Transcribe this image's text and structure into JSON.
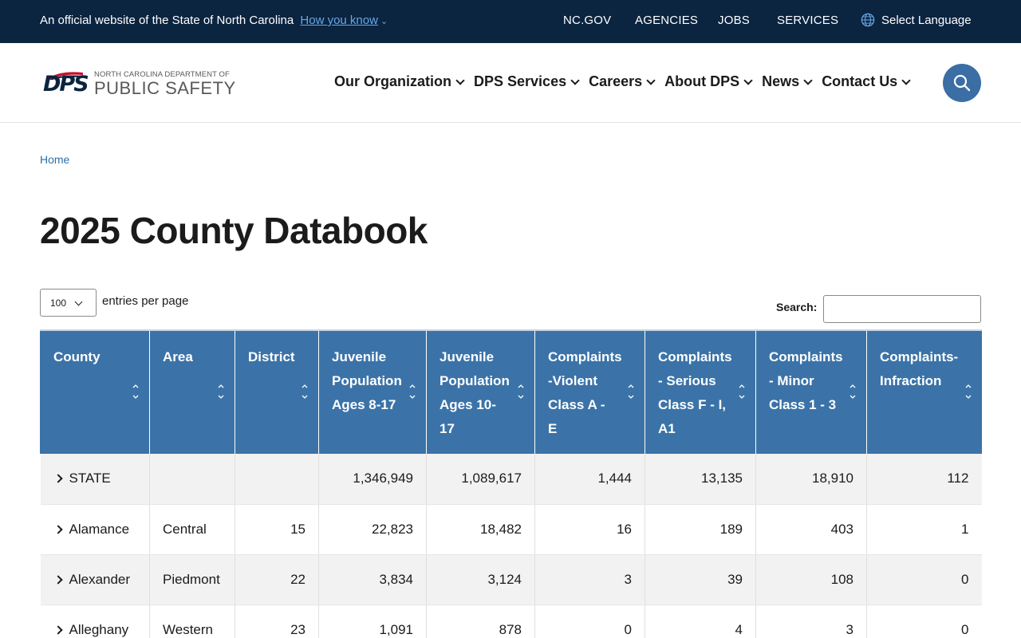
{
  "govbar": {
    "official_text": "An official website of the State of North Carolina",
    "how_you_know": "How you know",
    "links": [
      "NC.GOV",
      "AGENCIES",
      "JOBS",
      "SERVICES"
    ],
    "select_language": "Select Language"
  },
  "logo": {
    "mark": "DPS",
    "line1": "NORTH CAROLINA DEPARTMENT OF",
    "line2": "PUBLIC SAFETY"
  },
  "nav": [
    "Our Organization",
    "DPS Services",
    "Careers",
    "About DPS",
    "News",
    "Contact Us"
  ],
  "breadcrumb": "Home",
  "page_title": "2025 County Databook",
  "controls": {
    "entries_value": "100",
    "entries_label": "entries per page",
    "search_label": "Search:",
    "search_value": ""
  },
  "table": {
    "columns": [
      "County",
      "Area",
      "District",
      "Juvenile Population Ages 8-17",
      "Juvenile Population Ages 10-17",
      "Complaints -Violent Class A - E",
      "Complaints - Serious Class F - I, A1",
      "Complaints - Minor Class 1 - 3",
      "Complaints-Infraction"
    ],
    "rows": [
      [
        "STATE",
        "",
        "",
        "1,346,949",
        "1,089,617",
        "1,444",
        "13,135",
        "18,910",
        "112"
      ],
      [
        "Alamance",
        "Central",
        "15",
        "22,823",
        "18,482",
        "16",
        "189",
        "403",
        "1"
      ],
      [
        "Alexander",
        "Piedmont",
        "22",
        "3,834",
        "3,124",
        "3",
        "39",
        "108",
        "0"
      ],
      [
        "Alleghany",
        "Western",
        "23",
        "1,091",
        "878",
        "0",
        "4",
        "3",
        "0"
      ]
    ]
  },
  "colors": {
    "govbar_bg": "#0b2440",
    "link_blue": "#66a8e6",
    "header_blue": "#3b73a8",
    "search_button": "#3a6ea5"
  }
}
